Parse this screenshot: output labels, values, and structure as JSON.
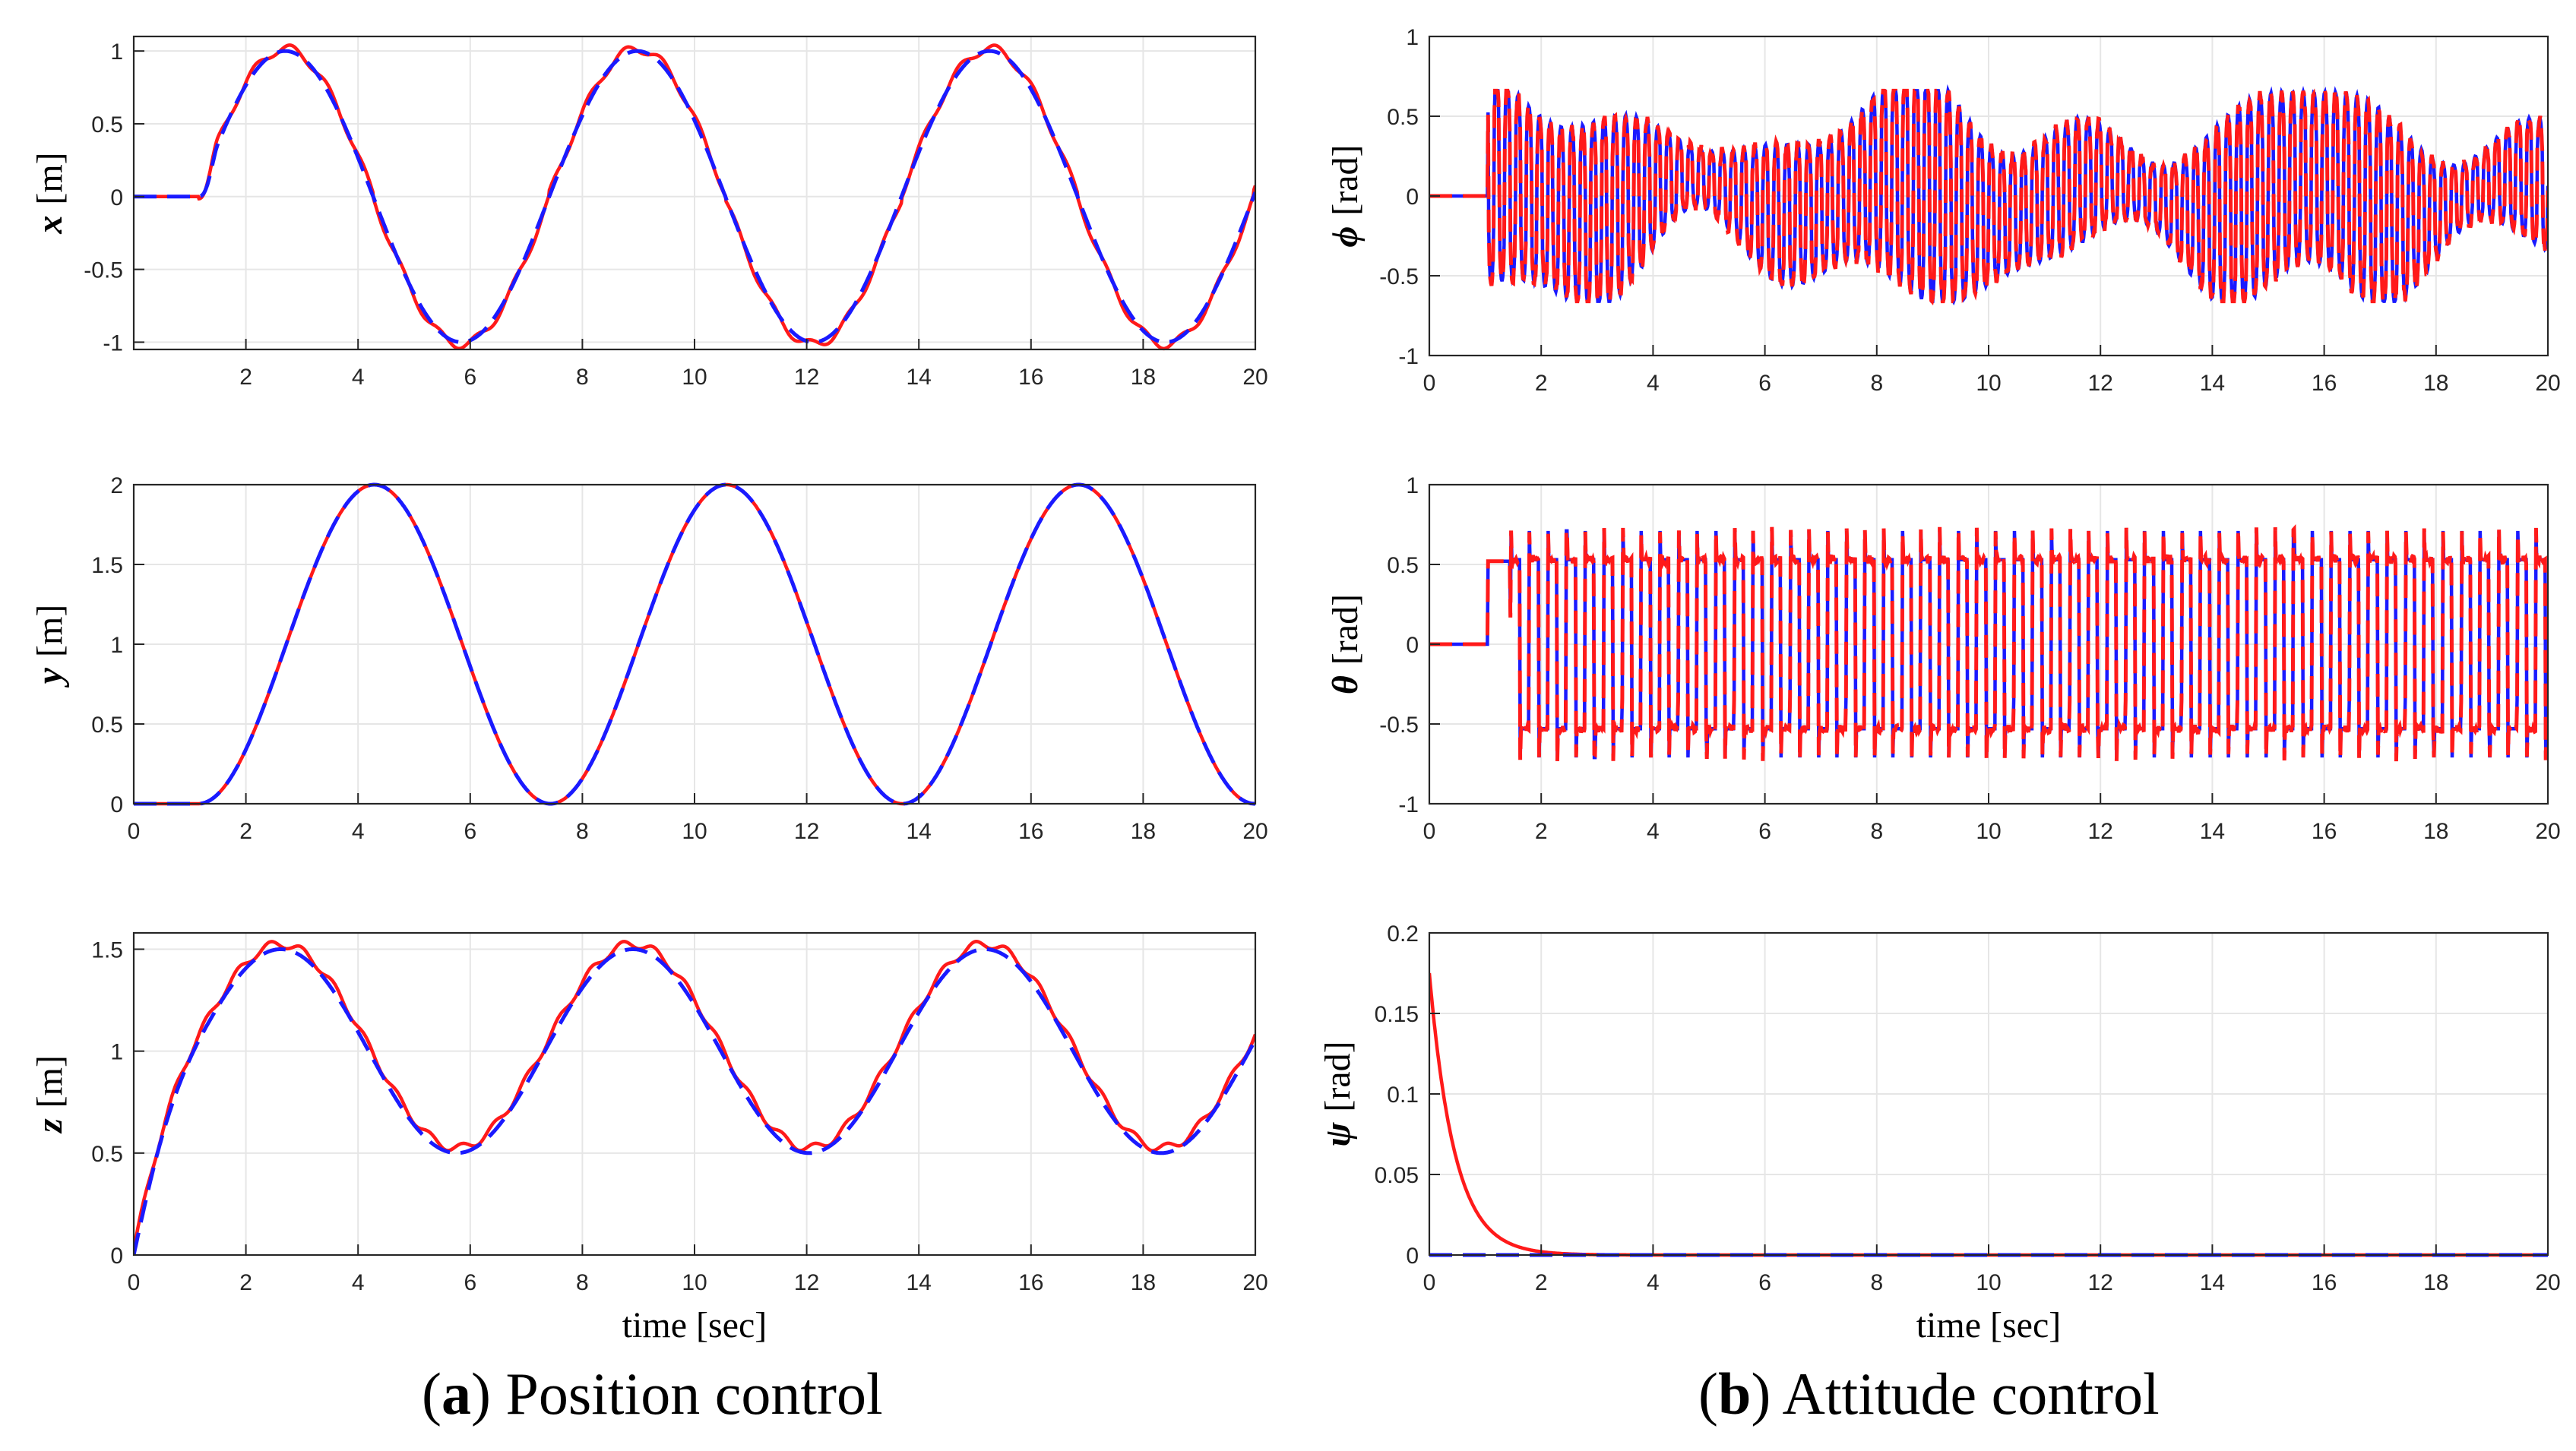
{
  "colors": {
    "actual": "#ff1a1a",
    "reference": "#1a1aff",
    "grid": "#e6e6e6",
    "axis": "#262626"
  },
  "captions": {
    "a_letter": "a",
    "a_text": "Position control",
    "b_letter": "b",
    "b_text": "Attitude control"
  },
  "chart_data": [
    {
      "id": "x",
      "type": "line",
      "panel": "a",
      "ylabel_symbol": "x",
      "ylabel_unit": "[m]",
      "xlim": [
        0,
        20
      ],
      "ylim": [
        -1.05,
        1.1
      ],
      "xticks": [
        2,
        4,
        6,
        8,
        10,
        12,
        14,
        16,
        18,
        20
      ],
      "yticks": [
        -1,
        -0.5,
        0,
        0.5,
        1
      ],
      "ytick_labels": [
        "-1",
        "-0.5",
        "0",
        "0.5",
        "1"
      ],
      "xlabel": "",
      "signal": {
        "kind": "sine",
        "start": 1.15,
        "amplitude": 1.0,
        "offset": 0,
        "period": 6.28,
        "phase_start": 0
      },
      "series": [
        {
          "name": "actual",
          "style": "solid",
          "ripple": 0.03
        },
        {
          "name": "reference",
          "style": "dashed"
        }
      ]
    },
    {
      "id": "y",
      "type": "line",
      "panel": "a",
      "ylabel_symbol": "y",
      "ylabel_unit": "[m]",
      "xlim": [
        0,
        20
      ],
      "ylim": [
        0,
        2
      ],
      "xticks": [
        0,
        2,
        4,
        6,
        8,
        10,
        12,
        14,
        16,
        18,
        20
      ],
      "yticks": [
        0,
        0.5,
        1,
        1.5,
        2
      ],
      "ytick_labels": [
        "0",
        "0.5",
        "1",
        "1.5",
        "2"
      ],
      "xlabel": "",
      "signal": {
        "kind": "cosine_bump",
        "start": 1.15,
        "amplitude": 1.0,
        "offset": 1.0,
        "period": 6.28
      },
      "series": [
        {
          "name": "actual",
          "style": "solid",
          "ripple": 0.0
        },
        {
          "name": "reference",
          "style": "dashed"
        }
      ]
    },
    {
      "id": "z",
      "type": "line",
      "panel": "a",
      "ylabel_symbol": "z",
      "ylabel_unit": "[m]",
      "xlim": [
        0,
        20
      ],
      "ylim": [
        0,
        1.58
      ],
      "xticks": [
        0,
        2,
        4,
        6,
        8,
        10,
        12,
        14,
        16,
        18,
        20
      ],
      "yticks": [
        0,
        0.5,
        1,
        1.5
      ],
      "ytick_labels": [
        "0",
        "0.5",
        "1",
        "1.5"
      ],
      "xlabel": "time [sec]",
      "signal": {
        "kind": "z_track",
        "amplitude": 0.5,
        "offset": 1.0,
        "period": 6.28
      },
      "series": [
        {
          "name": "actual",
          "style": "solid",
          "ripple": 0.02
        },
        {
          "name": "reference",
          "style": "dashed"
        }
      ]
    },
    {
      "id": "phi",
      "type": "line",
      "panel": "b",
      "ylabel_symbol": "ϕ",
      "ylabel_unit": "[rad]",
      "xlim": [
        0,
        20
      ],
      "ylim": [
        -1,
        1
      ],
      "xticks": [
        0,
        2,
        4,
        6,
        8,
        10,
        12,
        14,
        16,
        18,
        20
      ],
      "yticks": [
        -1,
        -0.5,
        0,
        0.5,
        1
      ],
      "ytick_labels": [
        "-1",
        "-0.5",
        "0",
        "0.5",
        "1"
      ],
      "xlabel": "",
      "signal": {
        "kind": "chatter",
        "start": 1.05,
        "amplitude": 0.6,
        "freq": 5.2,
        "seed": 7
      },
      "series": [
        {
          "name": "reference",
          "style": "solid"
        },
        {
          "name": "actual",
          "style": "dashed"
        }
      ]
    },
    {
      "id": "theta",
      "type": "line",
      "panel": "b",
      "ylabel_symbol": "θ",
      "ylabel_unit": "[rad]",
      "xlim": [
        0,
        20
      ],
      "ylim": [
        -1,
        1
      ],
      "xticks": [
        0,
        2,
        4,
        6,
        8,
        10,
        12,
        14,
        16,
        18,
        20
      ],
      "yticks": [
        -1,
        -0.5,
        0,
        0.5,
        1
      ],
      "ytick_labels": [
        "-1",
        "-0.5",
        "0",
        "0.5",
        "1"
      ],
      "xlabel": "",
      "signal": {
        "kind": "square_chatter",
        "start": 1.05,
        "amplitude": 0.55,
        "freq": 3.0
      },
      "series": [
        {
          "name": "reference",
          "style": "solid"
        },
        {
          "name": "actual",
          "style": "dashed"
        }
      ]
    },
    {
      "id": "psi",
      "type": "line",
      "panel": "b",
      "ylabel_symbol": "ψ",
      "ylabel_unit": "[rad]",
      "xlim": [
        0,
        20
      ],
      "ylim": [
        0,
        0.2
      ],
      "xticks": [
        0,
        2,
        4,
        6,
        8,
        10,
        12,
        14,
        16,
        18,
        20
      ],
      "yticks": [
        0,
        0.05,
        0.1,
        0.15,
        0.2
      ],
      "ytick_labels": [
        "0",
        "0.05",
        "0.1",
        "0.15",
        "0.2"
      ],
      "xlabel": "time [sec]",
      "signal": {
        "kind": "decay",
        "initial": 0.175,
        "tau": 0.45
      },
      "series": [
        {
          "name": "actual",
          "style": "solid"
        },
        {
          "name": "reference",
          "style": "dashed",
          "constant": 0
        }
      ]
    }
  ]
}
